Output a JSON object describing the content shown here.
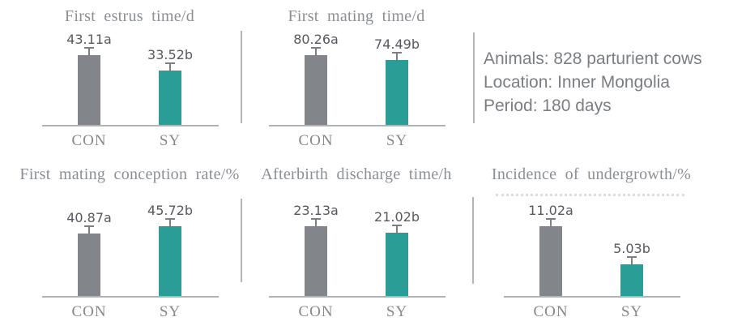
{
  "colors": {
    "con_bar": "#82868a",
    "sy_bar": "#2a9e96",
    "title_text": "#8b8f94",
    "value_text": "#55585d",
    "category_text": "#85898e",
    "error_bar": "#7b7f83",
    "axis_line": "#b0b3b6",
    "divider": "#b3b6b9",
    "info_text": "#7a7e83"
  },
  "info_panel": {
    "lines": [
      "Animals: 828 parturient cows",
      "Location: Inner Mongolia",
      "Period: 180 days"
    ]
  },
  "chart_data": [
    {
      "type": "bar",
      "title": "First estrus time/d",
      "categories": [
        "CON",
        "SY"
      ],
      "values": [
        43.11,
        33.52
      ],
      "data_labels": [
        "43.11a",
        "33.52b"
      ],
      "error_bars": true,
      "grid": false,
      "legend": "none",
      "bar_color_keys": [
        "con_bar",
        "sy_bar"
      ]
    },
    {
      "type": "bar",
      "title": "First mating time/d",
      "categories": [
        "CON",
        "SY"
      ],
      "values": [
        80.26,
        74.49
      ],
      "data_labels": [
        "80.26a",
        "74.49b"
      ],
      "error_bars": true,
      "grid": false,
      "legend": "none",
      "bar_color_keys": [
        "con_bar",
        "sy_bar"
      ]
    },
    {
      "type": "bar",
      "title": "First mating conception rate/%",
      "categories": [
        "CON",
        "SY"
      ],
      "values": [
        40.87,
        45.72
      ],
      "data_labels": [
        "40.87a",
        "45.72b"
      ],
      "error_bars": true,
      "grid": false,
      "legend": "none",
      "bar_color_keys": [
        "con_bar",
        "sy_bar"
      ]
    },
    {
      "type": "bar",
      "title": "Afterbirth discharge time/h",
      "categories": [
        "CON",
        "SY"
      ],
      "values": [
        23.13,
        21.02
      ],
      "data_labels": [
        "23.13a",
        "21.02b"
      ],
      "error_bars": true,
      "grid": false,
      "legend": "none",
      "bar_color_keys": [
        "con_bar",
        "sy_bar"
      ]
    },
    {
      "type": "bar",
      "title": "Incidence of undergrowth/%",
      "categories": [
        "CON",
        "SY"
      ],
      "values": [
        11.02,
        5.03
      ],
      "data_labels": [
        "11.02a",
        "5.03b"
      ],
      "error_bars": true,
      "grid": false,
      "legend": "none",
      "bar_color_keys": [
        "con_bar",
        "sy_bar"
      ]
    }
  ]
}
